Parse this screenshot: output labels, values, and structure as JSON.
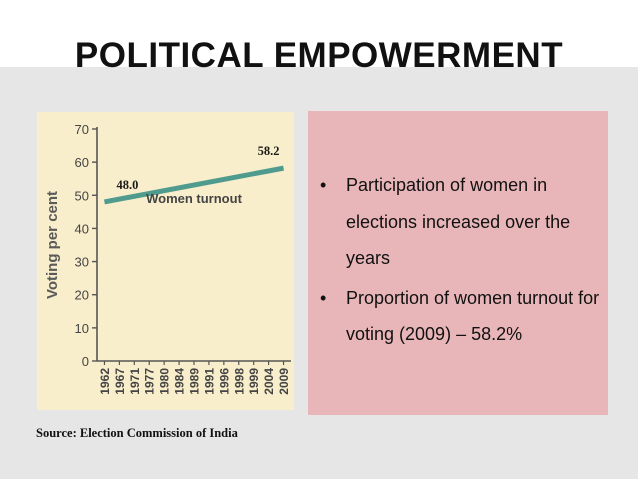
{
  "slide": {
    "title": "POLITICAL EMPOWERMENT"
  },
  "source": "Source: Election Commission of India",
  "bullets": [
    {
      "marker": "•",
      "text": "Participation of women in elections increased over the years"
    },
    {
      "marker": "•",
      "text": "Proportion of women turnout for voting (2009) – 58.2%"
    }
  ],
  "chart_data": {
    "type": "line",
    "title": "",
    "xlabel": "",
    "ylabel": "Voting per cent",
    "ylim": [
      0,
      70
    ],
    "yticks": [
      0,
      10,
      20,
      30,
      40,
      50,
      60,
      70
    ],
    "categories": [
      "1962",
      "1967",
      "1971",
      "1977",
      "1980",
      "1984",
      "1989",
      "1991",
      "1996",
      "1998",
      "1999",
      "2004",
      "2009"
    ],
    "series": [
      {
        "name": "Women turnout",
        "x": [
          "1962",
          "2009"
        ],
        "values": [
          48.0,
          58.2
        ]
      }
    ],
    "data_labels": [
      {
        "category": "1962",
        "value": 48.0,
        "text": "48.0"
      },
      {
        "category": "2009",
        "value": 58.2,
        "text": "58.2"
      }
    ],
    "grid": false,
    "colors": {
      "line": "#4f9c8e",
      "axis": "#555555",
      "text": "#444444",
      "panel": "#f9eecb"
    }
  }
}
